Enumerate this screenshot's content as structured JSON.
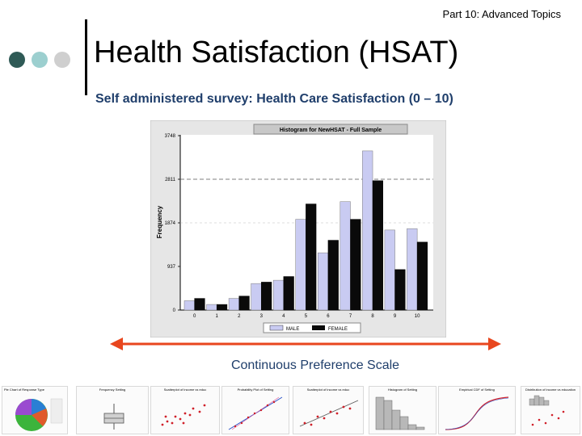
{
  "header": {
    "corner_label": "Part 10: Advanced Topics",
    "title": "Health Satisfaction (HSAT)",
    "subtitle": "Self administered survey: Health Care Satisfaction  (0 – 10)"
  },
  "scale_label": "Continuous Preference Scale",
  "colors": {
    "dot1": "#2f5a56",
    "dot2": "#9ccfcf",
    "dot3": "#cfcfcf",
    "arrow": "#e8461e",
    "male": "#c9cbf2",
    "female": "#0a0a0a",
    "text_blue": "#1f3e6b"
  },
  "chart_data": {
    "type": "bar",
    "title": "Histogram for NewHSAT - Full Sample",
    "ylabel": "Frequency",
    "xlabel": "",
    "categories": [
      "0",
      "1",
      "2",
      "3",
      "4",
      "5",
      "6",
      "7",
      "8",
      "9",
      "10"
    ],
    "yticks": [
      0,
      937,
      1874,
      2811,
      3748
    ],
    "ylim": [
      0,
      3748
    ],
    "reference_line": 2811,
    "series": [
      {
        "name": "MALE",
        "values": [
          200,
          120,
          250,
          570,
          640,
          1950,
          1230,
          2330,
          3420,
          1720,
          1750
        ]
      },
      {
        "name": "FEMALE",
        "values": [
          250,
          120,
          300,
          600,
          720,
          2280,
          1500,
          1950,
          2780,
          870,
          1460
        ]
      }
    ],
    "legend": [
      "MALE",
      "FEMALE"
    ]
  },
  "thumbnails": [
    {
      "title": "Pie Chart of Response Type"
    },
    {
      "title": "Frequency Setting"
    },
    {
      "title": "Scatterplot of income vs educ"
    },
    {
      "title": "Probability Plot of Setting"
    },
    {
      "title": "Scatterplot of income vs educ"
    },
    {
      "title": "Histogram of Setting"
    },
    {
      "title": "Empirical CDF of Setting"
    },
    {
      "title": "Distribution of income vs education"
    }
  ]
}
